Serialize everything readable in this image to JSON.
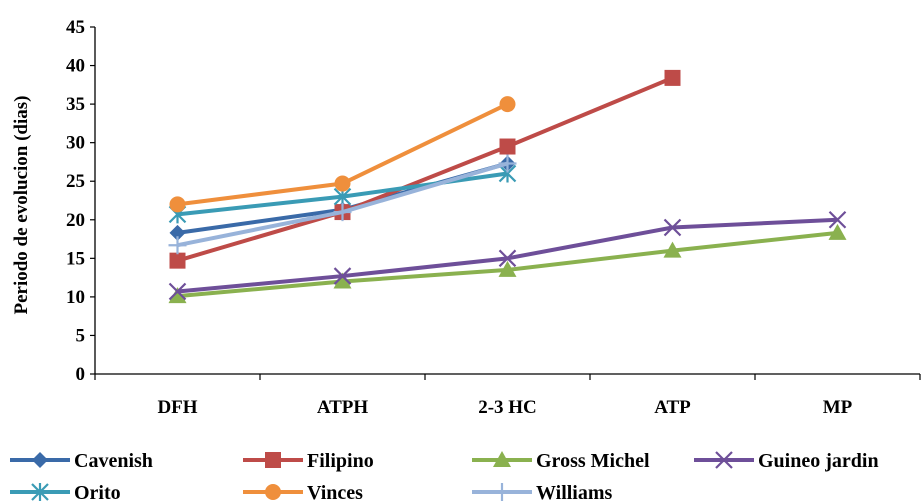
{
  "chart_data": {
    "type": "line",
    "title": "",
    "xlabel": "",
    "ylabel": "Periodo de evolucion (dias)",
    "categories": [
      "DFH",
      "ATPH",
      "2-3 HC",
      "ATP",
      "MP"
    ],
    "ylim": [
      0,
      45
    ],
    "yticks": [
      0,
      5,
      10,
      15,
      20,
      25,
      30,
      35,
      40,
      45
    ],
    "grid": false,
    "legend_position": "bottom",
    "series": [
      {
        "name": "Cavenish",
        "color": "#3a6aa8",
        "marker": "diamond",
        "values": [
          18.3,
          21.3,
          27.3,
          null,
          null
        ]
      },
      {
        "name": "Filipino",
        "color": "#be4b48",
        "marker": "square",
        "values": [
          14.7,
          21.0,
          29.5,
          38.4,
          null
        ]
      },
      {
        "name": "Gross Michel",
        "color": "#8ab14f",
        "marker": "triangle",
        "values": [
          10.1,
          12.0,
          13.5,
          16.0,
          18.3
        ]
      },
      {
        "name": "Guineo jardin",
        "color": "#6e4f99",
        "marker": "x",
        "values": [
          10.7,
          12.7,
          15.0,
          19.0,
          20.0
        ]
      },
      {
        "name": "Orito",
        "color": "#3a9bb5",
        "marker": "star",
        "values": [
          20.7,
          23.0,
          26.0,
          null,
          null
        ]
      },
      {
        "name": "Vinces",
        "color": "#ef8f3c",
        "marker": "circle",
        "values": [
          22.0,
          24.7,
          35.0,
          null,
          null
        ]
      },
      {
        "name": "Williams",
        "color": "#98b3da",
        "marker": "plus",
        "values": [
          16.7,
          21.0,
          27.3,
          null,
          null
        ]
      }
    ]
  }
}
